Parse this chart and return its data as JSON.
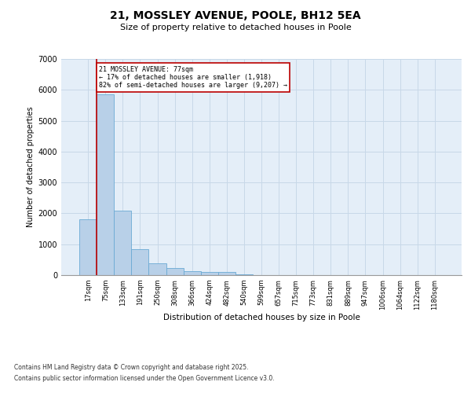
{
  "title_line1": "21, MOSSLEY AVENUE, POOLE, BH12 5EA",
  "title_line2": "Size of property relative to detached houses in Poole",
  "xlabel": "Distribution of detached houses by size in Poole",
  "ylabel": "Number of detached properties",
  "categories": [
    "17sqm",
    "75sqm",
    "133sqm",
    "191sqm",
    "250sqm",
    "308sqm",
    "366sqm",
    "424sqm",
    "482sqm",
    "540sqm",
    "599sqm",
    "657sqm",
    "715sqm",
    "773sqm",
    "831sqm",
    "889sqm",
    "947sqm",
    "1006sqm",
    "1064sqm",
    "1122sqm",
    "1180sqm"
  ],
  "values": [
    1800,
    5850,
    2100,
    830,
    370,
    240,
    130,
    95,
    90,
    30,
    10,
    2,
    0,
    0,
    0,
    0,
    0,
    0,
    0,
    0,
    0
  ],
  "bar_color": "#b8d0e8",
  "bar_edge_color": "#6aaad4",
  "vline_color": "#bb0000",
  "annotation_line1": "21 MOSSLEY AVENUE: 77sqm",
  "annotation_line2": "← 17% of detached houses are smaller (1,918)",
  "annotation_line3": "82% of semi-detached houses are larger (9,207) →",
  "ylim_max": 7000,
  "yticks": [
    0,
    1000,
    2000,
    3000,
    4000,
    5000,
    6000,
    7000
  ],
  "grid_color": "#c8d8e8",
  "bg_color": "#e4eef8",
  "footer_line1": "Contains HM Land Registry data © Crown copyright and database right 2025.",
  "footer_line2": "Contains public sector information licensed under the Open Government Licence v3.0."
}
